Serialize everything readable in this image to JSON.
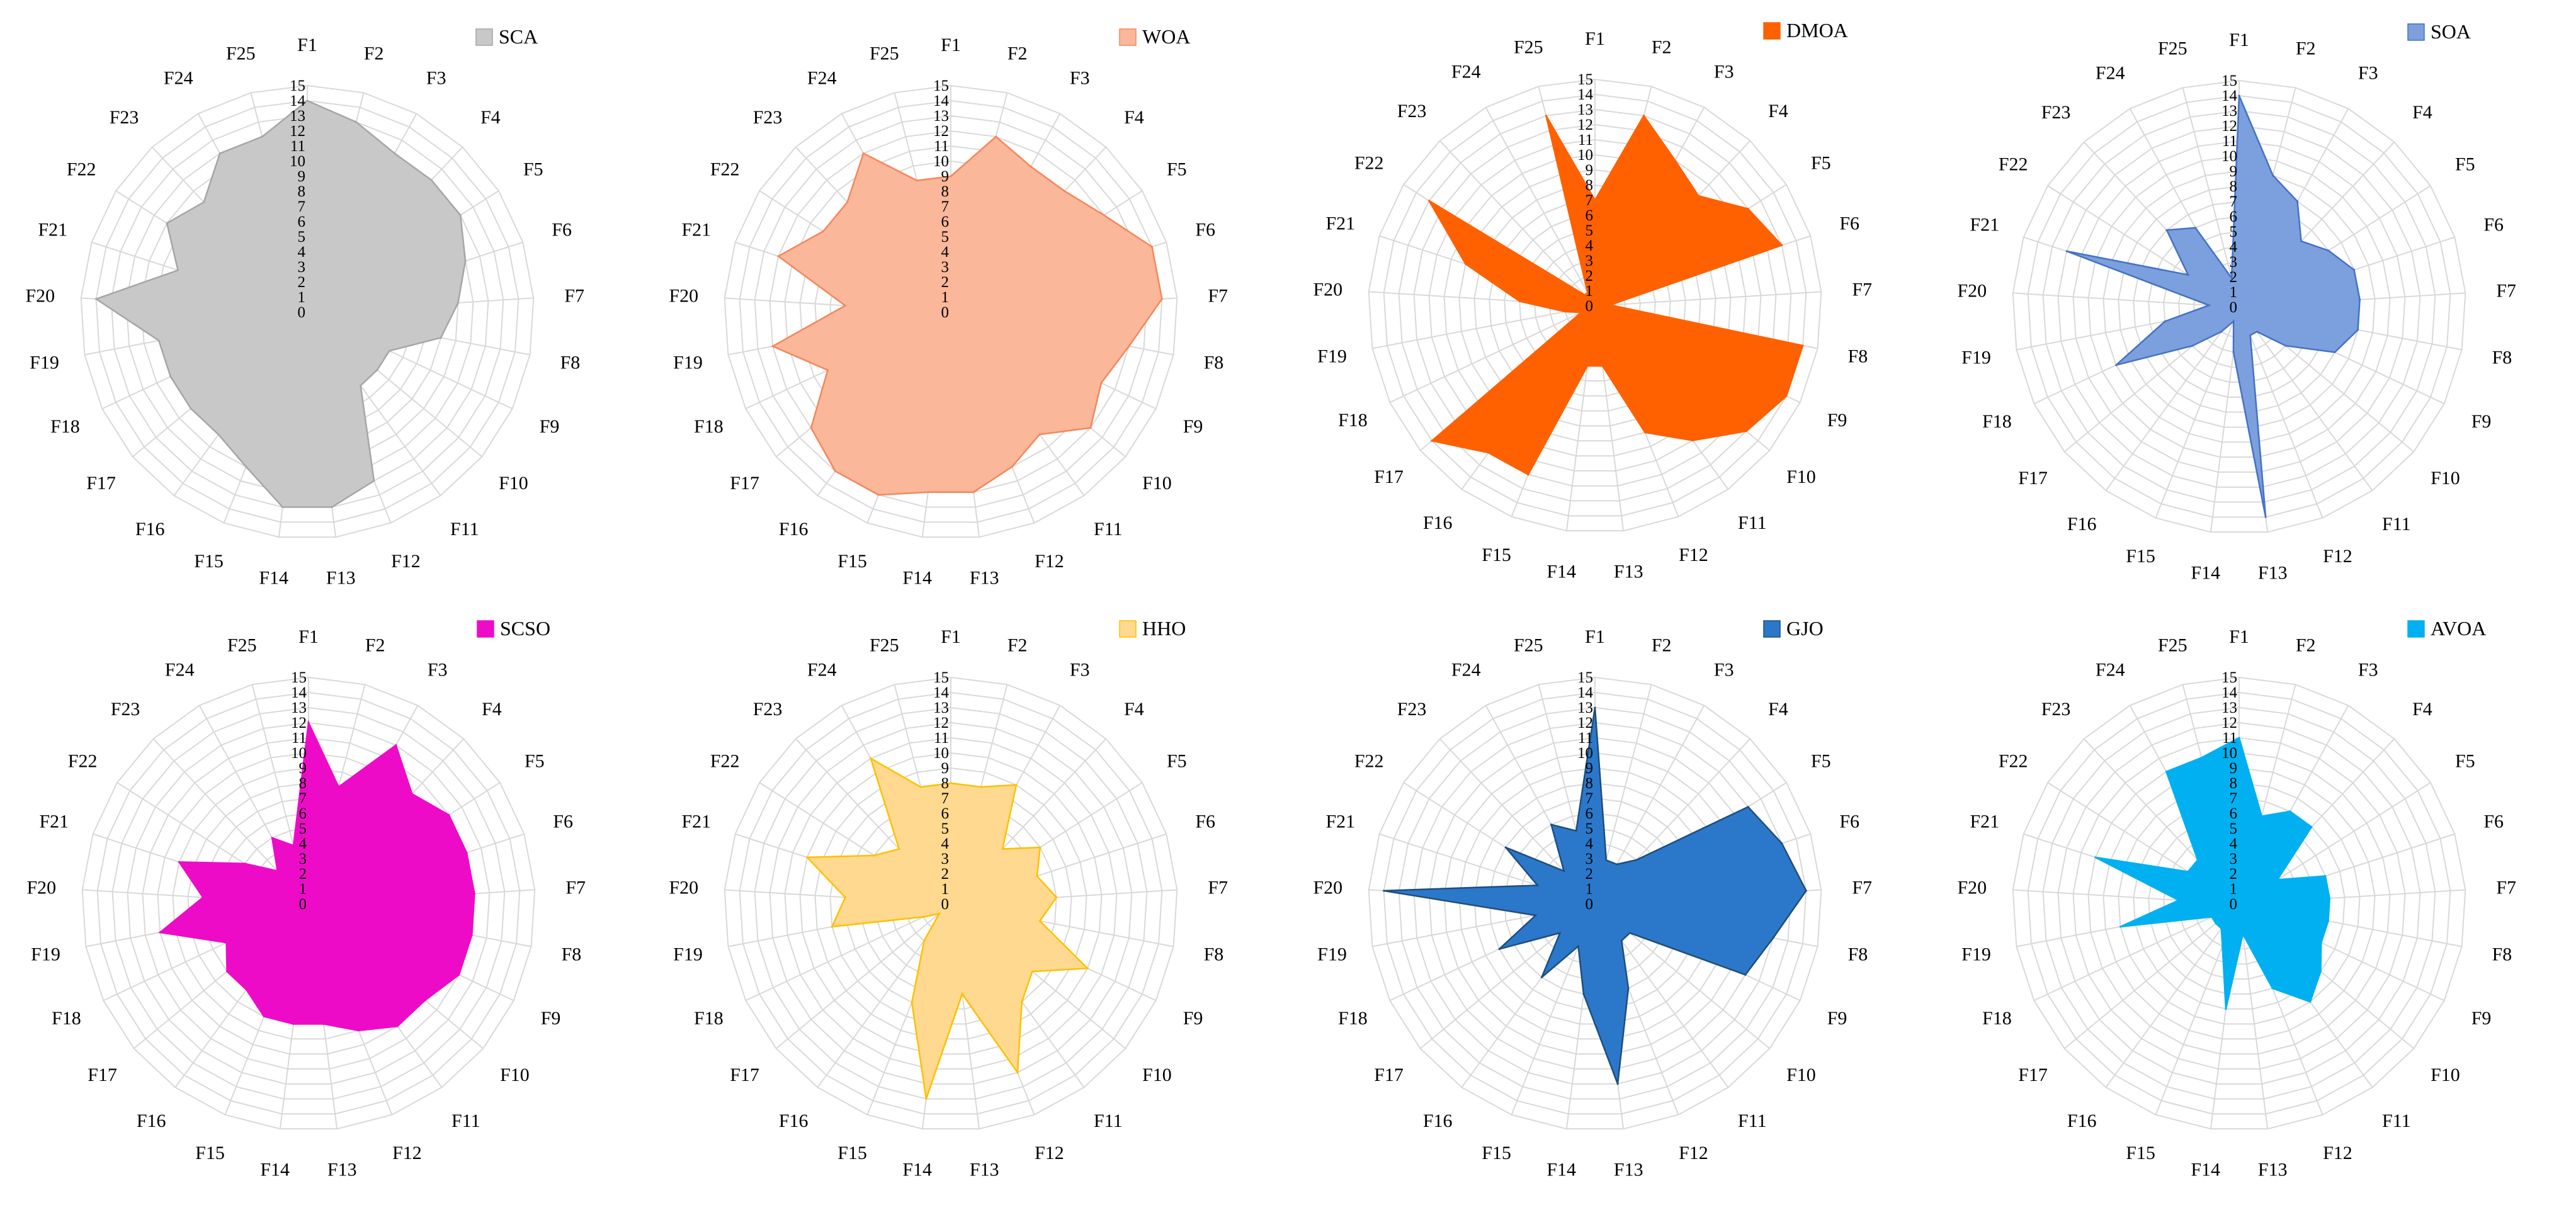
{
  "chart_data": [
    {
      "type": "radar",
      "series": [
        {
          "name": "SCA",
          "values": [
            14,
            13,
            12,
            12,
            12,
            11,
            10,
            9,
            6,
            6,
            6,
            12,
            13,
            13,
            11,
            10,
            10,
            10,
            10,
            14,
            9,
            11,
            10,
            12,
            12
          ]
        }
      ],
      "colors": {
        "fill": "#c8c8c8",
        "stroke": "#a6a6a6"
      }
    },
    {
      "type": "radar",
      "series": [
        {
          "name": "WOA",
          "values": [
            9,
            12,
            11,
            11,
            12,
            14,
            14,
            12,
            11,
            12,
            10,
            11,
            12,
            12,
            13,
            13,
            12,
            9,
            12,
            7,
            12,
            10,
            10,
            12,
            9
          ]
        }
      ],
      "colors": {
        "fill": "#fbb799",
        "stroke": "#f4875c"
      }
    },
    {
      "type": "radar",
      "series": [
        {
          "name": "DMOA",
          "values": [
            7,
            13,
            11,
            10,
            12,
            13,
            1,
            14,
            14,
            13,
            11,
            9,
            4,
            4,
            12,
            12,
            14,
            1,
            2,
            5,
            9,
            13,
            1,
            1,
            13
          ]
        }
      ],
      "colors": {
        "fill": "#ff6000",
        "stroke": "#ff6000"
      }
    },
    {
      "type": "radar",
      "series": [
        {
          "name": "SOA",
          "values": [
            14,
            9,
            8,
            6,
            7,
            8,
            8,
            8,
            7,
            4,
            2,
            2,
            14,
            3,
            1,
            2,
            4,
            9,
            5,
            2,
            12,
            4,
            7,
            6,
            2
          ]
        }
      ],
      "colors": {
        "fill": "#7c9fdd",
        "stroke": "#4472c4"
      }
    },
    {
      "type": "radar",
      "series": [
        {
          "name": "SCSO",
          "values": [
            12,
            8,
            12,
            10,
            11,
            11,
            11,
            11,
            11,
            10,
            10,
            9,
            8,
            8,
            8,
            7,
            7,
            6,
            10,
            7,
            9,
            5,
            3,
            5,
            4
          ]
        }
      ],
      "colors": {
        "fill": "#ee0bc8",
        "stroke": "#ee0bc8"
      }
    },
    {
      "type": "radar",
      "series": [
        {
          "name": "HHO",
          "values": [
            8,
            8,
            9,
            5,
            7,
            6,
            7,
            6,
            10,
            7,
            8,
            12,
            6,
            13,
            7,
            3,
            1,
            2,
            8,
            7,
            10,
            6,
            5,
            11,
            8
          ]
        }
      ],
      "colors": {
        "fill": "#fed98f",
        "stroke": "#ffc000"
      }
    },
    {
      "type": "radar",
      "series": [
        {
          "name": "GJO",
          "values": [
            13,
            3,
            3,
            4,
            12,
            13,
            14,
            12,
            11,
            3,
            3,
            6,
            12,
            6,
            3,
            6,
            3,
            7,
            4,
            14,
            4,
            7,
            3,
            6,
            5
          ]
        }
      ],
      "colors": {
        "fill": "#2b78cb",
        "stroke": "#1f4e79"
      }
    },
    {
      "type": "radar",
      "series": [
        {
          "name": "AVOA",
          "values": [
            11,
            6,
            7,
            7,
            3,
            6,
            6,
            6,
            6,
            7,
            8,
            6,
            2,
            7,
            3,
            2,
            2,
            2,
            8,
            4,
            10,
            4,
            4,
            10,
            10
          ]
        }
      ],
      "colors": {
        "fill": "#00b0f0",
        "stroke": "#00b0f0"
      }
    }
  ],
  "categories": [
    "F1",
    "F2",
    "F3",
    "F4",
    "F5",
    "F6",
    "F7",
    "F8",
    "F9",
    "F10",
    "F11",
    "F12",
    "F13",
    "F14",
    "F15",
    "F16",
    "F17",
    "F18",
    "F19",
    "F20",
    "F21",
    "F22",
    "F23",
    "F24",
    "F25"
  ],
  "r_ticks": [
    "0",
    "1",
    "2",
    "3",
    "4",
    "5",
    "6",
    "7",
    "8",
    "9",
    "10",
    "11",
    "12",
    "13",
    "14",
    "15"
  ],
  "rlim": [
    0,
    15
  ],
  "grid": true,
  "legend_position": "top-right"
}
